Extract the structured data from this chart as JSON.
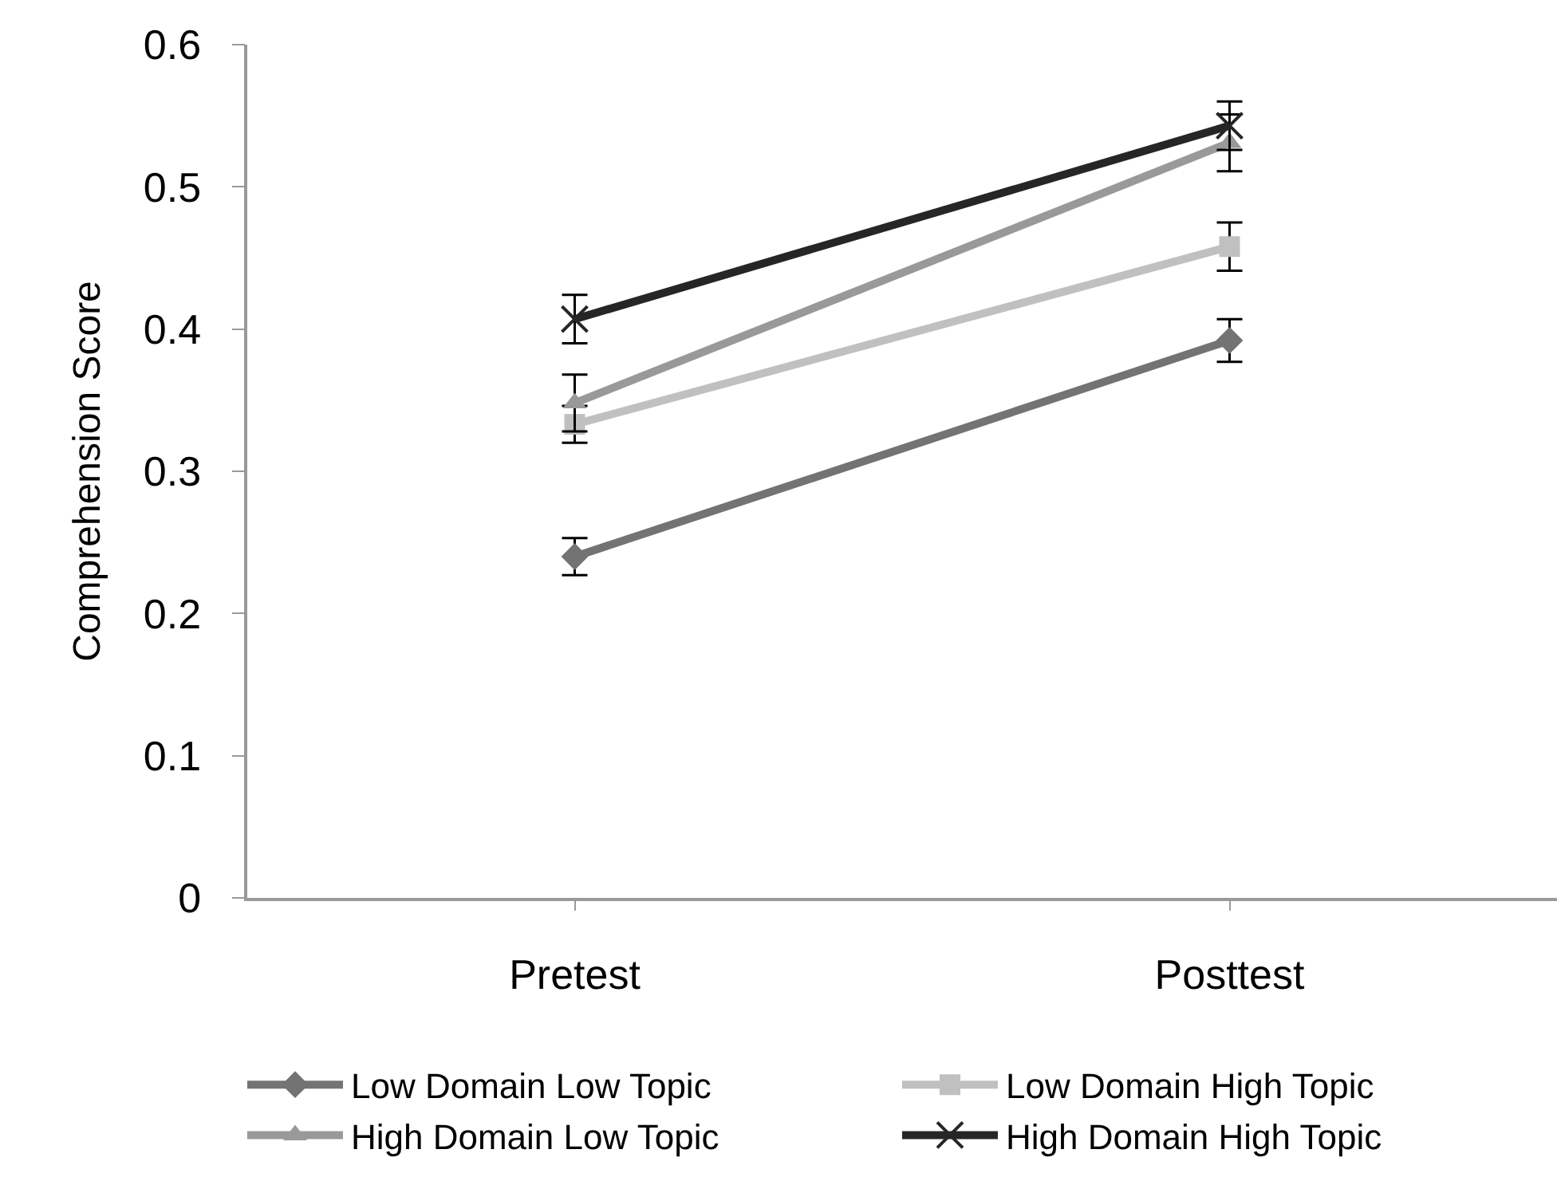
{
  "chart_data": {
    "type": "line",
    "ylabel": "Comprehension Score",
    "categories": [
      "Pretest",
      "Posttest"
    ],
    "ylim": [
      0,
      0.6
    ],
    "yticks": [
      0,
      0.1,
      0.2,
      0.3,
      0.4,
      0.5,
      0.6
    ],
    "grid": false,
    "legend": "bottom",
    "series": [
      {
        "name": "Low Domain Low Topic",
        "color": "#737373",
        "marker": "diamond",
        "values": [
          0.24,
          0.392
        ],
        "errors": [
          0.013,
          0.015
        ]
      },
      {
        "name": "Low Domain High Topic",
        "color": "#c0c0c0",
        "marker": "square",
        "values": [
          0.333,
          0.458
        ],
        "errors": [
          0.013,
          0.017
        ]
      },
      {
        "name": "High Domain Low Topic",
        "color": "#999999",
        "marker": "triangle",
        "values": [
          0.348,
          0.531
        ],
        "errors": [
          0.02,
          0.02
        ]
      },
      {
        "name": "High Domain High Topic",
        "color": "#262626",
        "marker": "cross",
        "values": [
          0.407,
          0.543
        ],
        "errors": [
          0.017,
          0.017
        ]
      }
    ]
  }
}
